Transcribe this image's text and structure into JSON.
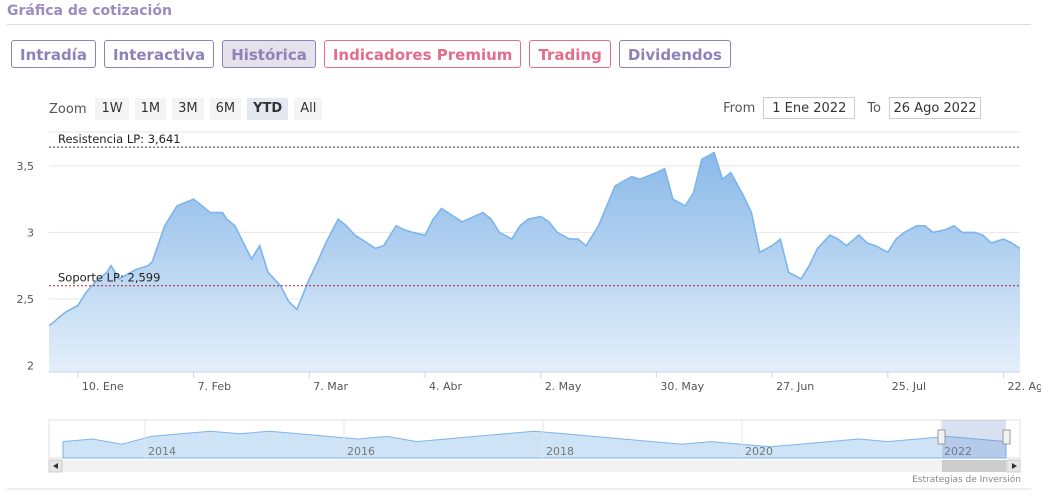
{
  "header": {
    "title": "Gráfica de cotización"
  },
  "tabs": [
    {
      "label": "Intradía",
      "style": "normal"
    },
    {
      "label": "Interactiva",
      "style": "normal"
    },
    {
      "label": "Histórica",
      "style": "active"
    },
    {
      "label": "Indicadores Premium",
      "style": "pink"
    },
    {
      "label": "Trading",
      "style": "pink"
    },
    {
      "label": "Dividendos",
      "style": "normal"
    }
  ],
  "zoom": {
    "label": "Zoom",
    "options": [
      "1W",
      "1M",
      "3M",
      "6M",
      "YTD",
      "All"
    ],
    "selected": "YTD"
  },
  "range": {
    "from_label": "From",
    "from_value": "1 Ene 2022",
    "to_label": "To",
    "to_value": "26 Ago 2022"
  },
  "credit": "Estrategias de Inversión",
  "chart_data": {
    "type": "area",
    "series": [
      {
        "x": [
          "2022-01-03",
          "2022-01-04",
          "2022-01-05",
          "2022-01-07",
          "2022-01-10",
          "2022-01-12",
          "2022-01-14",
          "2022-01-17",
          "2022-01-18",
          "2022-01-20",
          "2022-01-24",
          "2022-01-27",
          "2022-01-28",
          "2022-01-31",
          "2022-02-03",
          "2022-02-07",
          "2022-02-09",
          "2022-02-11",
          "2022-02-14",
          "2022-02-15",
          "2022-02-17",
          "2022-02-21",
          "2022-02-23",
          "2022-02-25",
          "2022-02-28",
          "2022-03-02",
          "2022-03-04",
          "2022-03-07",
          "2022-03-09",
          "2022-03-11",
          "2022-03-14",
          "2022-03-16",
          "2022-03-18",
          "2022-03-21",
          "2022-03-23",
          "2022-03-25",
          "2022-03-28",
          "2022-03-30",
          "2022-04-01",
          "2022-04-04",
          "2022-04-06",
          "2022-04-08",
          "2022-04-11",
          "2022-04-13",
          "2022-04-18",
          "2022-04-20",
          "2022-04-22",
          "2022-04-25",
          "2022-04-27",
          "2022-04-29",
          "2022-05-02",
          "2022-05-04",
          "2022-05-06",
          "2022-05-09",
          "2022-05-11",
          "2022-05-13",
          "2022-05-16",
          "2022-05-18",
          "2022-05-20",
          "2022-05-24",
          "2022-05-26",
          "2022-05-30",
          "2022-06-01",
          "2022-06-03",
          "2022-06-06",
          "2022-06-08",
          "2022-06-10",
          "2022-06-13",
          "2022-06-15",
          "2022-06-17",
          "2022-06-20",
          "2022-06-22",
          "2022-06-24",
          "2022-06-27",
          "2022-06-29",
          "2022-07-01",
          "2022-07-04",
          "2022-07-06",
          "2022-07-08",
          "2022-07-11",
          "2022-07-13",
          "2022-07-15",
          "2022-07-18",
          "2022-07-20",
          "2022-07-22",
          "2022-07-25",
          "2022-07-27",
          "2022-07-29",
          "2022-08-01",
          "2022-08-03",
          "2022-08-05",
          "2022-08-08",
          "2022-08-10",
          "2022-08-12",
          "2022-08-15",
          "2022-08-17",
          "2022-08-19",
          "2022-08-22",
          "2022-08-24",
          "2022-08-26"
        ],
        "values": [
          2.3,
          2.32,
          2.35,
          2.4,
          2.45,
          2.55,
          2.62,
          2.7,
          2.75,
          2.65,
          2.72,
          2.75,
          2.78,
          3.05,
          3.2,
          3.25,
          3.2,
          3.15,
          3.15,
          3.1,
          3.05,
          2.8,
          2.9,
          2.7,
          2.6,
          2.48,
          2.42,
          2.65,
          2.78,
          2.92,
          3.1,
          3.05,
          2.98,
          2.92,
          2.88,
          2.9,
          3.05,
          3.02,
          3.0,
          2.98,
          3.1,
          3.18,
          3.12,
          3.08,
          3.15,
          3.1,
          3.0,
          2.95,
          3.05,
          3.1,
          3.12,
          3.08,
          3.0,
          2.95,
          2.95,
          2.9,
          3.05,
          3.2,
          3.35,
          3.42,
          3.4,
          3.45,
          3.48,
          3.25,
          3.2,
          3.3,
          3.55,
          3.6,
          3.4,
          3.45,
          3.28,
          3.15,
          2.85,
          2.9,
          2.95,
          2.7,
          2.65,
          2.75,
          2.88,
          2.98,
          2.95,
          2.9,
          2.98,
          2.92,
          2.9,
          2.85,
          2.95,
          3.0,
          3.05,
          3.05,
          3.0,
          3.02,
          3.05,
          3.0,
          3.0,
          2.98,
          2.92,
          2.95,
          2.92,
          2.88
        ]
      }
    ],
    "yticks": [
      2,
      2.5,
      3,
      3.5
    ],
    "ytick_labels": [
      "2",
      "2,5",
      "3",
      "3,5"
    ],
    "xticks": [
      "2022-01-10",
      "2022-02-07",
      "2022-03-07",
      "2022-04-04",
      "2022-05-02",
      "2022-05-30",
      "2022-06-27",
      "2022-07-25",
      "2022-08-22"
    ],
    "xtick_labels": [
      "10. Ene",
      "7. Feb",
      "7. Mar",
      "4. Abr",
      "2. May",
      "30. May",
      "27. Jun",
      "25. Jul",
      "22. Ago"
    ],
    "ylim": [
      1.95,
      3.68
    ],
    "xlim": [
      "2022-01-03",
      "2022-08-26"
    ],
    "grid": true,
    "annotations": [
      {
        "label": "Resistencia LP: 3,641",
        "value": 3.641,
        "color": "#333333"
      },
      {
        "label": "Soporte LP: 2,599",
        "value": 2.599,
        "color": "#b0203b"
      }
    ],
    "navigator": {
      "years": [
        "2014",
        "2016",
        "2018",
        "2020",
        "2022"
      ],
      "values": [
        2.6,
        2.7,
        2.5,
        2.8,
        2.9,
        3.0,
        2.9,
        3.0,
        2.9,
        2.8,
        2.7,
        2.8,
        2.6,
        2.7,
        2.8,
        2.9,
        3.0,
        2.9,
        2.8,
        2.7,
        2.6,
        2.5,
        2.6,
        2.5,
        2.4,
        2.5,
        2.6,
        2.7,
        2.6,
        2.7,
        2.8,
        2.7,
        2.6
      ]
    },
    "colors": {
      "line": "#7cb5ec",
      "fill_top": "#8ab9e8",
      "fill_bottom": "#e4effa",
      "grid": "#e6e6e6"
    }
  }
}
